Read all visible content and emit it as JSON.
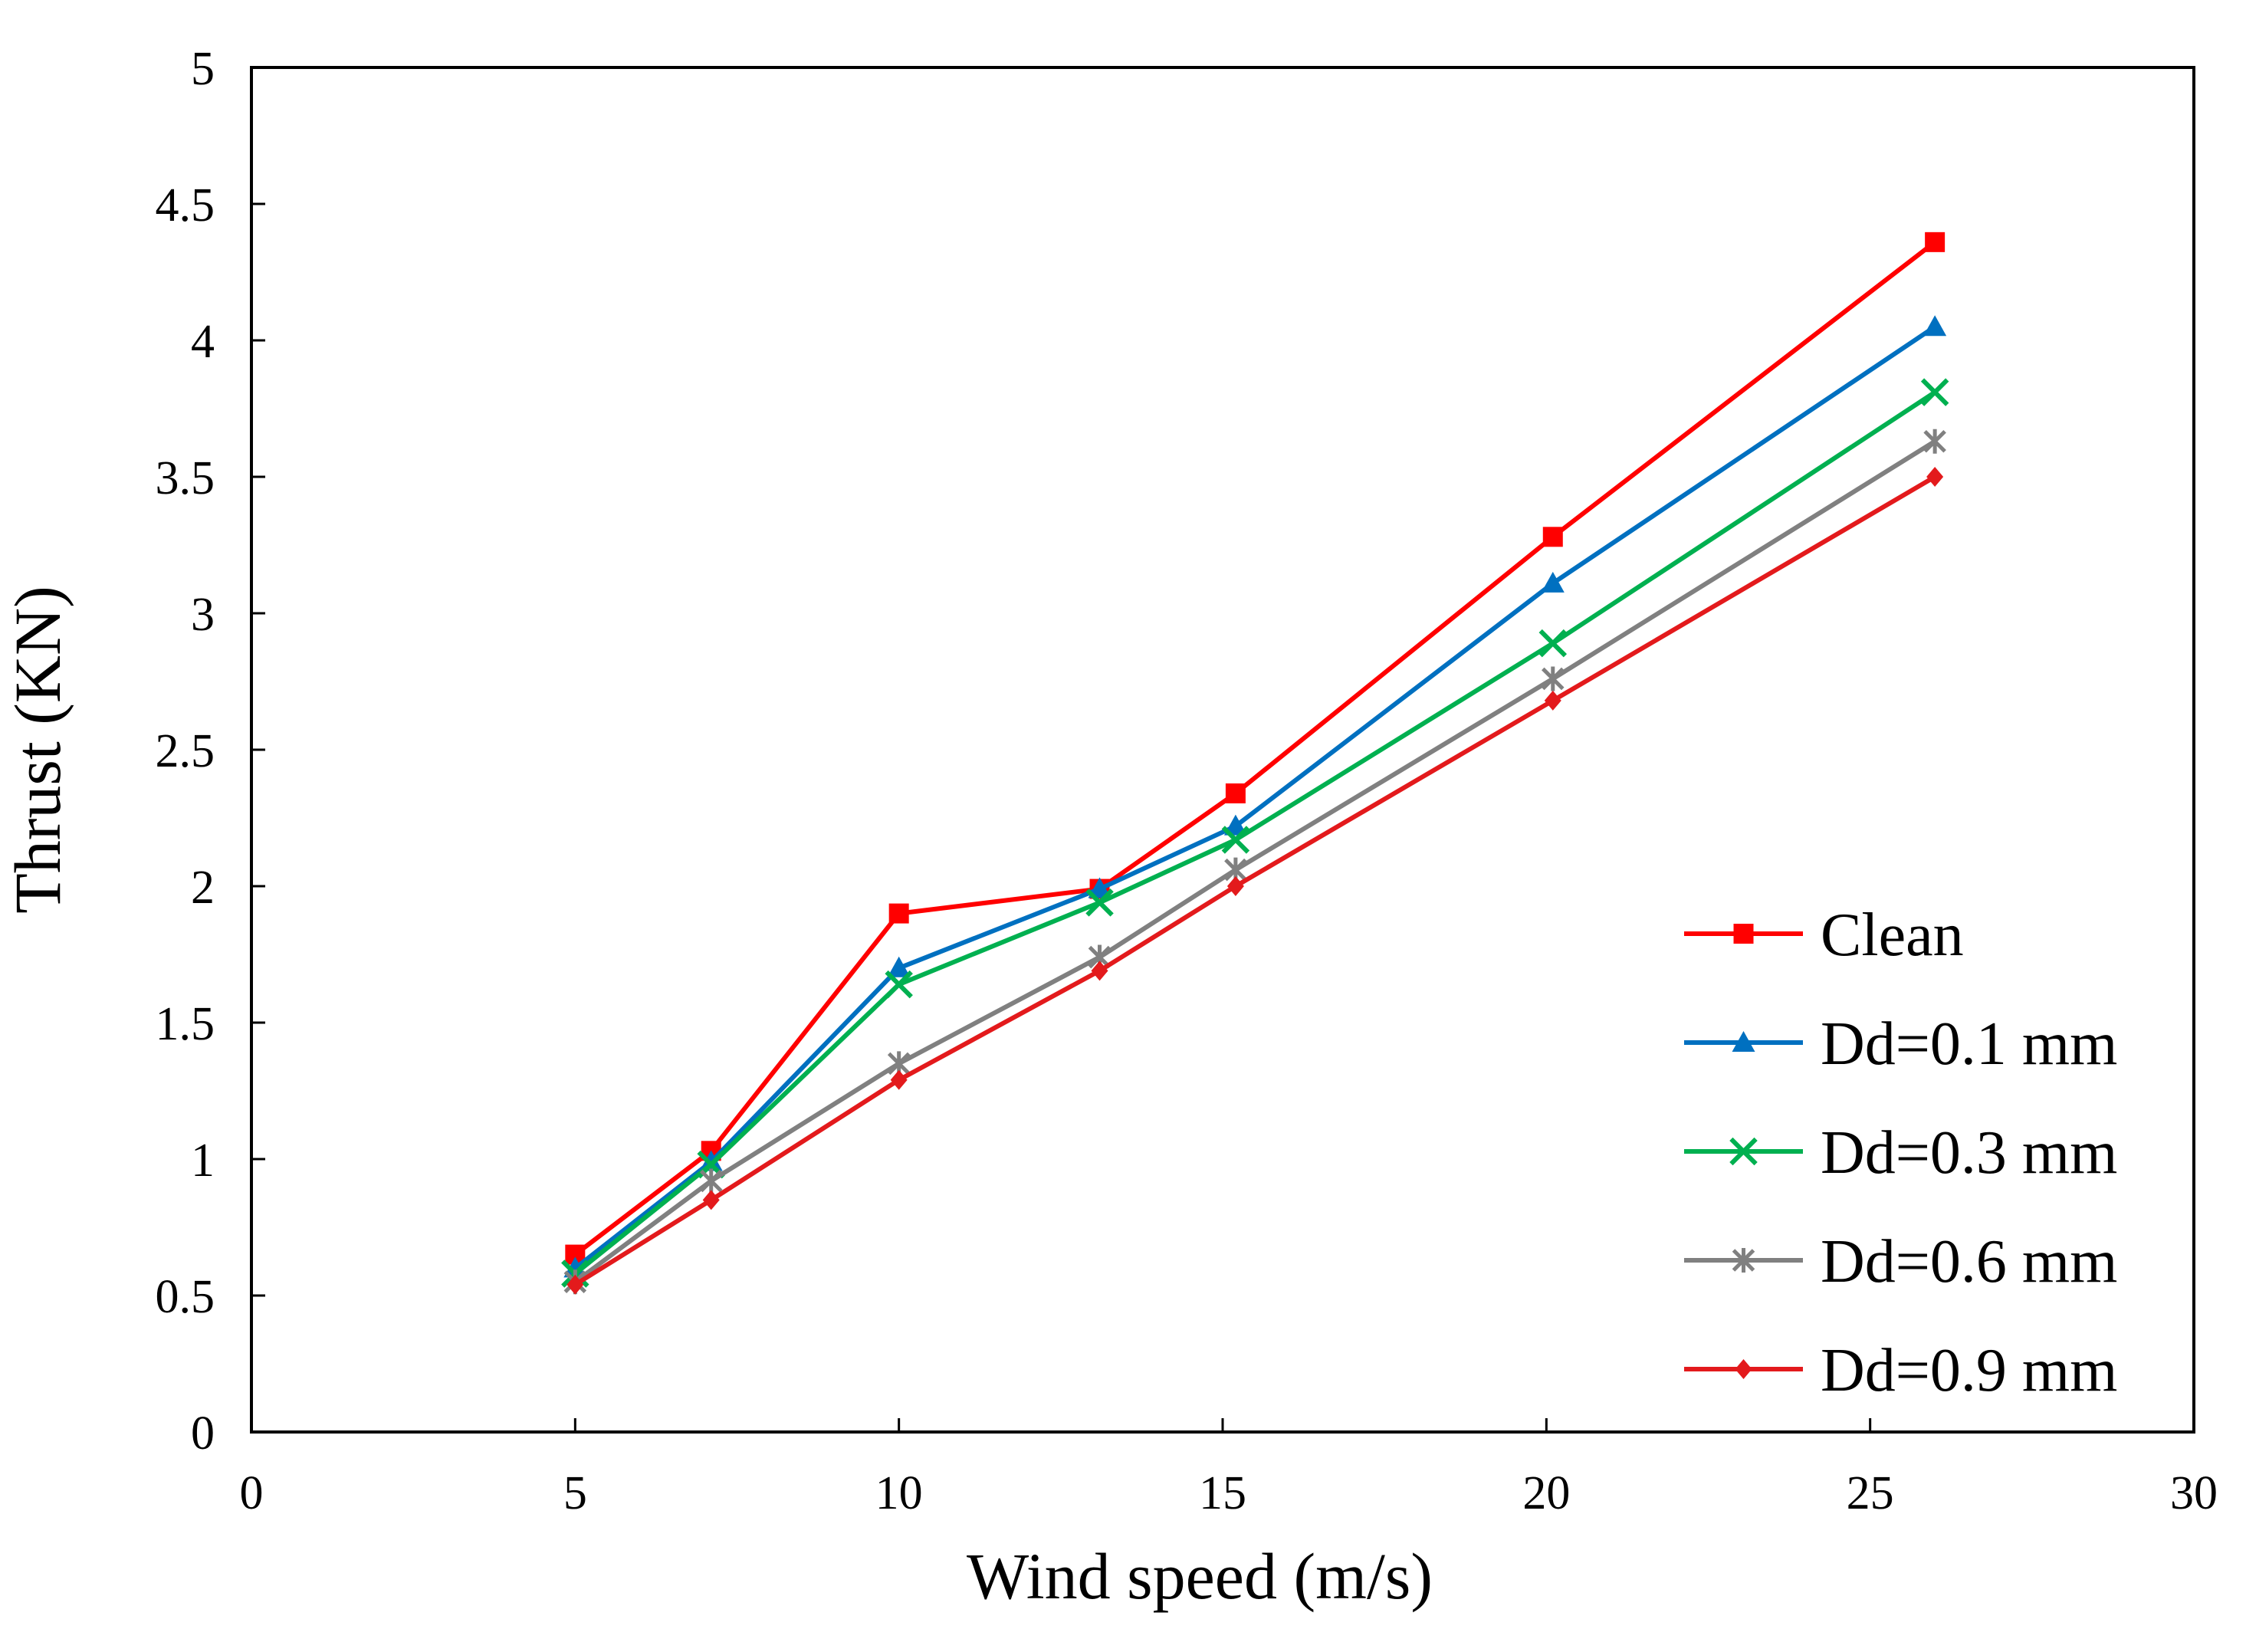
{
  "chart_data": {
    "type": "line",
    "title": "",
    "xlabel": "Wind speed (m/s)",
    "ylabel": "Thrust (KN)",
    "xlim": [
      0,
      30
    ],
    "ylim": [
      0,
      5
    ],
    "xticks": [
      0,
      5,
      10,
      15,
      20,
      25,
      30
    ],
    "xtick_labels": [
      "0",
      "5",
      "10",
      "15",
      "20",
      "25",
      "30"
    ],
    "yticks": [
      0,
      0.5,
      1,
      1.5,
      2,
      2.5,
      3,
      3.5,
      4,
      4.5,
      5
    ],
    "ytick_labels": [
      "0",
      "0.5",
      "1",
      "1.5",
      "2",
      "2.5",
      "3",
      "3.5",
      "4",
      "4.5",
      "5"
    ],
    "grid": false,
    "legend_position": "bottom-right",
    "x": [
      5,
      7.1,
      10,
      13.1,
      15.2,
      20.1,
      26
    ],
    "series": [
      {
        "name": "Clean",
        "color": "#ff0000",
        "marker": "square",
        "values": [
          0.65,
          1.03,
          1.9,
          1.99,
          2.34,
          3.28,
          4.36
        ]
      },
      {
        "name": "Dd=0.1 mm",
        "color": "#0070c0",
        "marker": "triangle",
        "values": [
          0.6,
          0.99,
          1.7,
          1.99,
          2.22,
          3.11,
          4.05
        ]
      },
      {
        "name": "Dd=0.3 mm",
        "color": "#00b050",
        "marker": "x",
        "values": [
          0.58,
          0.98,
          1.64,
          1.94,
          2.17,
          2.89,
          3.81
        ]
      },
      {
        "name": "Dd=0.6 mm",
        "color": "#808080",
        "marker": "star",
        "values": [
          0.55,
          0.92,
          1.35,
          1.74,
          2.06,
          2.76,
          3.63
        ]
      },
      {
        "name": "Dd=0.9 mm",
        "color": "#e31a1c",
        "marker": "diamond",
        "values": [
          0.54,
          0.85,
          1.29,
          1.69,
          2.0,
          2.68,
          3.5
        ]
      }
    ]
  }
}
